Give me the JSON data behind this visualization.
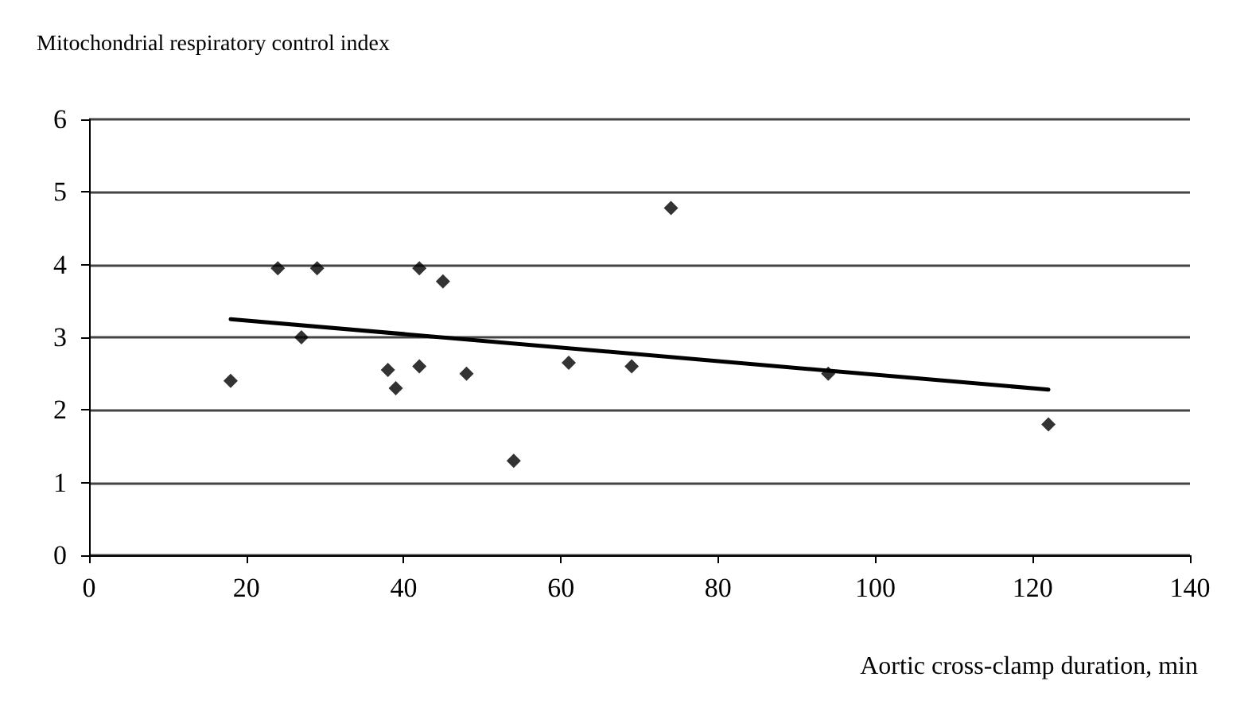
{
  "chart_data": {
    "type": "scatter",
    "ylabel": "Mitochondrial respiratory control index",
    "xlabel": "Aortic cross-clamp duration, min",
    "marker": "diamond",
    "grid": "y",
    "xlim": [
      0,
      140
    ],
    "xticks": [
      0,
      20,
      40,
      60,
      80,
      100,
      120,
      140
    ],
    "ylim": [
      0,
      6
    ],
    "yticks": [
      0,
      1,
      2,
      3,
      4,
      5,
      6
    ],
    "series": [
      {
        "color": "#000000",
        "x": [
          18,
          24,
          27,
          29,
          38,
          39,
          42,
          42,
          45,
          48,
          54,
          61,
          69,
          74,
          94,
          122
        ],
        "values": [
          2.4,
          3.95,
          3.0,
          3.95,
          2.55,
          2.3,
          3.95,
          2.6,
          3.77,
          2.5,
          1.3,
          2.65,
          2.6,
          4.78,
          2.5,
          1.8
        ]
      },
      {
        "type": "line",
        "color": "#000000",
        "marker": "none",
        "line_style": "solid",
        "x": [
          18,
          122
        ],
        "values": [
          3.25,
          2.28
        ]
      }
    ]
  }
}
